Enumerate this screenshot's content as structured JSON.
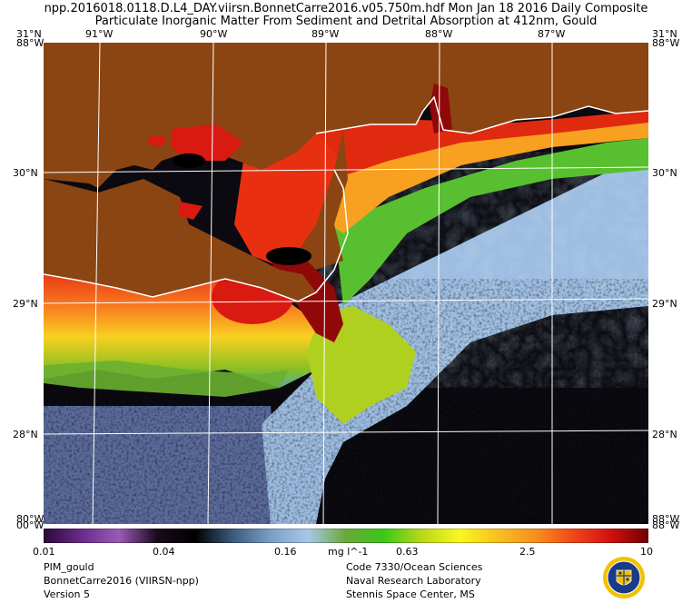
{
  "header": {
    "filename_line": "npp.2016018.0118.D.L4_DAY.viirsn.BonnetCarre2016.v05.750m.hdf     Mon Jan 18 2016 Daily Composite",
    "product_line": "Particulate Inorganic Matter From Sediment and Detrital Absorption at 412nm, Gould"
  },
  "map": {
    "longitude_labels": [
      "91°W",
      "90°W",
      "89°W",
      "88°W",
      "87°W"
    ],
    "latitude_labels": [
      "31°N",
      "30°N",
      "29°N",
      "28°N"
    ],
    "corner_labels": {
      "top_left_a": "31°N",
      "top_left_b": "88°W",
      "top_right_a": "31°N",
      "top_right_b": "88°W",
      "bottom_left_a": "80°W",
      "bottom_left_b": "00°W",
      "bottom_right_a": "88°W",
      "bottom_right_b": "88°W"
    },
    "land_color": "#8b4513",
    "coast_color": "#ffffff",
    "grid_color": "#ffffff"
  },
  "colorbar": {
    "ticks": [
      "0.01",
      "0.04",
      "0.16",
      "0.63",
      "2.5",
      "10"
    ],
    "units": "mg l^-1",
    "min": 0.01,
    "max": 10,
    "scale": "log",
    "colors": [
      "#2a0a3a",
      "#6a2a8a",
      "#9a5ab8",
      "#1a0a1a",
      "#000000",
      "#3a5a7a",
      "#7a9ec8",
      "#a8c8e8",
      "#6aa83a",
      "#3ac81a",
      "#b8d81a",
      "#f8f820",
      "#f8c020",
      "#f89020",
      "#f04818",
      "#d01010",
      "#700000"
    ]
  },
  "footer": {
    "left": [
      "PIM_gould",
      "BonnetCarre2016 (VIIRSN-npp)",
      "Version 5"
    ],
    "right": [
      "Code 7330/Ocean Sciences",
      "Naval Research Laboratory",
      "Stennis Space Center, MS"
    ]
  },
  "seal_icon": "nrl-seal-icon"
}
